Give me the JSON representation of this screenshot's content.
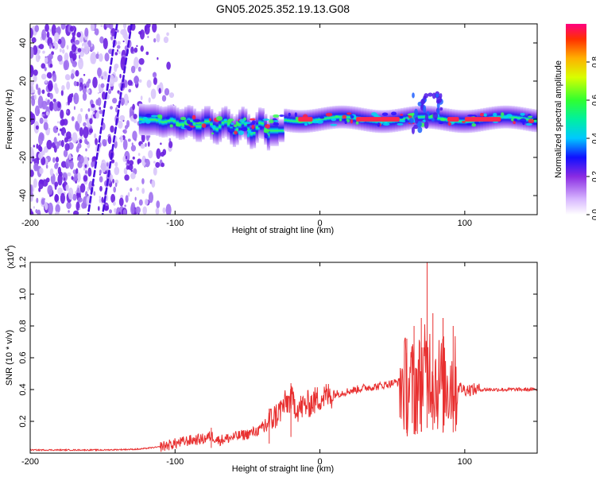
{
  "chart_data": [
    {
      "type": "heatmap",
      "title": "GN05.2025.352.19.13.G08",
      "xlabel": "Height of straight line (km)",
      "ylabel": "Frequency (Hz)",
      "xlim": [
        -200,
        150
      ],
      "ylim": [
        -50,
        50
      ],
      "x_ticks": [
        -200,
        -100,
        0,
        100
      ],
      "y_ticks": [
        -40,
        -20,
        0,
        20,
        40
      ],
      "colorbar": {
        "label": "Normalized spectral amplitude",
        "range": [
          0,
          1
        ],
        "ticks": [
          0.0,
          0.2,
          0.4,
          0.6,
          0.8
        ],
        "tick_labels": [
          "0.0",
          "0.2",
          "0.4",
          "0.6",
          "0.8"
        ]
      },
      "features": [
        {
          "kind": "noise_scatter",
          "x_range": [
            -200,
            -110
          ],
          "freq_range": [
            -50,
            50
          ]
        },
        {
          "kind": "streak",
          "x_start": -130,
          "freq_start": 50,
          "x_end": -150,
          "freq_end": -50
        },
        {
          "kind": "streak",
          "x_start": -140,
          "freq_start": 50,
          "x_end": -160,
          "freq_end": -50
        },
        {
          "kind": "energy_band",
          "x_range": [
            -125,
            150
          ],
          "center_freq": 0,
          "half_width": 6
        }
      ]
    },
    {
      "type": "line",
      "xlabel": "Height of straight line (km)",
      "ylabel": "SNR (10 * v/v)",
      "y_scale_label": "(x10",
      "y_scale_exp": "4",
      "y_scale_suffix": ")",
      "xlim": [
        -200,
        150
      ],
      "ylim": [
        0,
        1.2
      ],
      "x_ticks": [
        -200,
        -100,
        0,
        100
      ],
      "y_ticks": [
        0.2,
        0.4,
        0.6,
        0.8,
        1.0,
        1.2
      ],
      "y_tick_labels": [
        "0.2",
        "0.4",
        "0.6",
        "0.8",
        "1.0",
        "1.2"
      ],
      "color": "#e83030",
      "series": [
        {
          "name": "SNR",
          "x": [
            -200,
            -175,
            -150,
            -125,
            -110,
            -100,
            -90,
            -80,
            -75,
            -70,
            -60,
            -50,
            -40,
            -35,
            -30,
            -25,
            -20,
            -15,
            -10,
            -5,
            0,
            10,
            20,
            30,
            40,
            50,
            55,
            60,
            65,
            70,
            75,
            80,
            85,
            90,
            95,
            100,
            110,
            120,
            130,
            140,
            150
          ],
          "values": [
            0.02,
            0.02,
            0.02,
            0.025,
            0.04,
            0.06,
            0.08,
            0.09,
            0.11,
            0.08,
            0.1,
            0.12,
            0.15,
            0.2,
            0.24,
            0.3,
            0.34,
            0.28,
            0.3,
            0.32,
            0.35,
            0.37,
            0.39,
            0.41,
            0.42,
            0.44,
            0.45,
            0.42,
            0.4,
            0.45,
            0.55,
            0.45,
            0.43,
            0.45,
            0.42,
            0.4,
            0.4,
            0.4,
            0.4,
            0.4,
            0.4
          ],
          "peaks": [
            {
              "x": -75,
              "y": 0.16
            },
            {
              "x": -35,
              "y": 0.28
            },
            {
              "x": -20,
              "y": 0.44
            },
            {
              "x": 60,
              "y": 0.72
            },
            {
              "x": 65,
              "y": 0.8
            },
            {
              "x": 70,
              "y": 0.85
            },
            {
              "x": 74,
              "y": 1.2
            },
            {
              "x": 78,
              "y": 0.88
            },
            {
              "x": 85,
              "y": 0.85
            },
            {
              "x": 92,
              "y": 0.8
            }
          ]
        }
      ]
    }
  ]
}
